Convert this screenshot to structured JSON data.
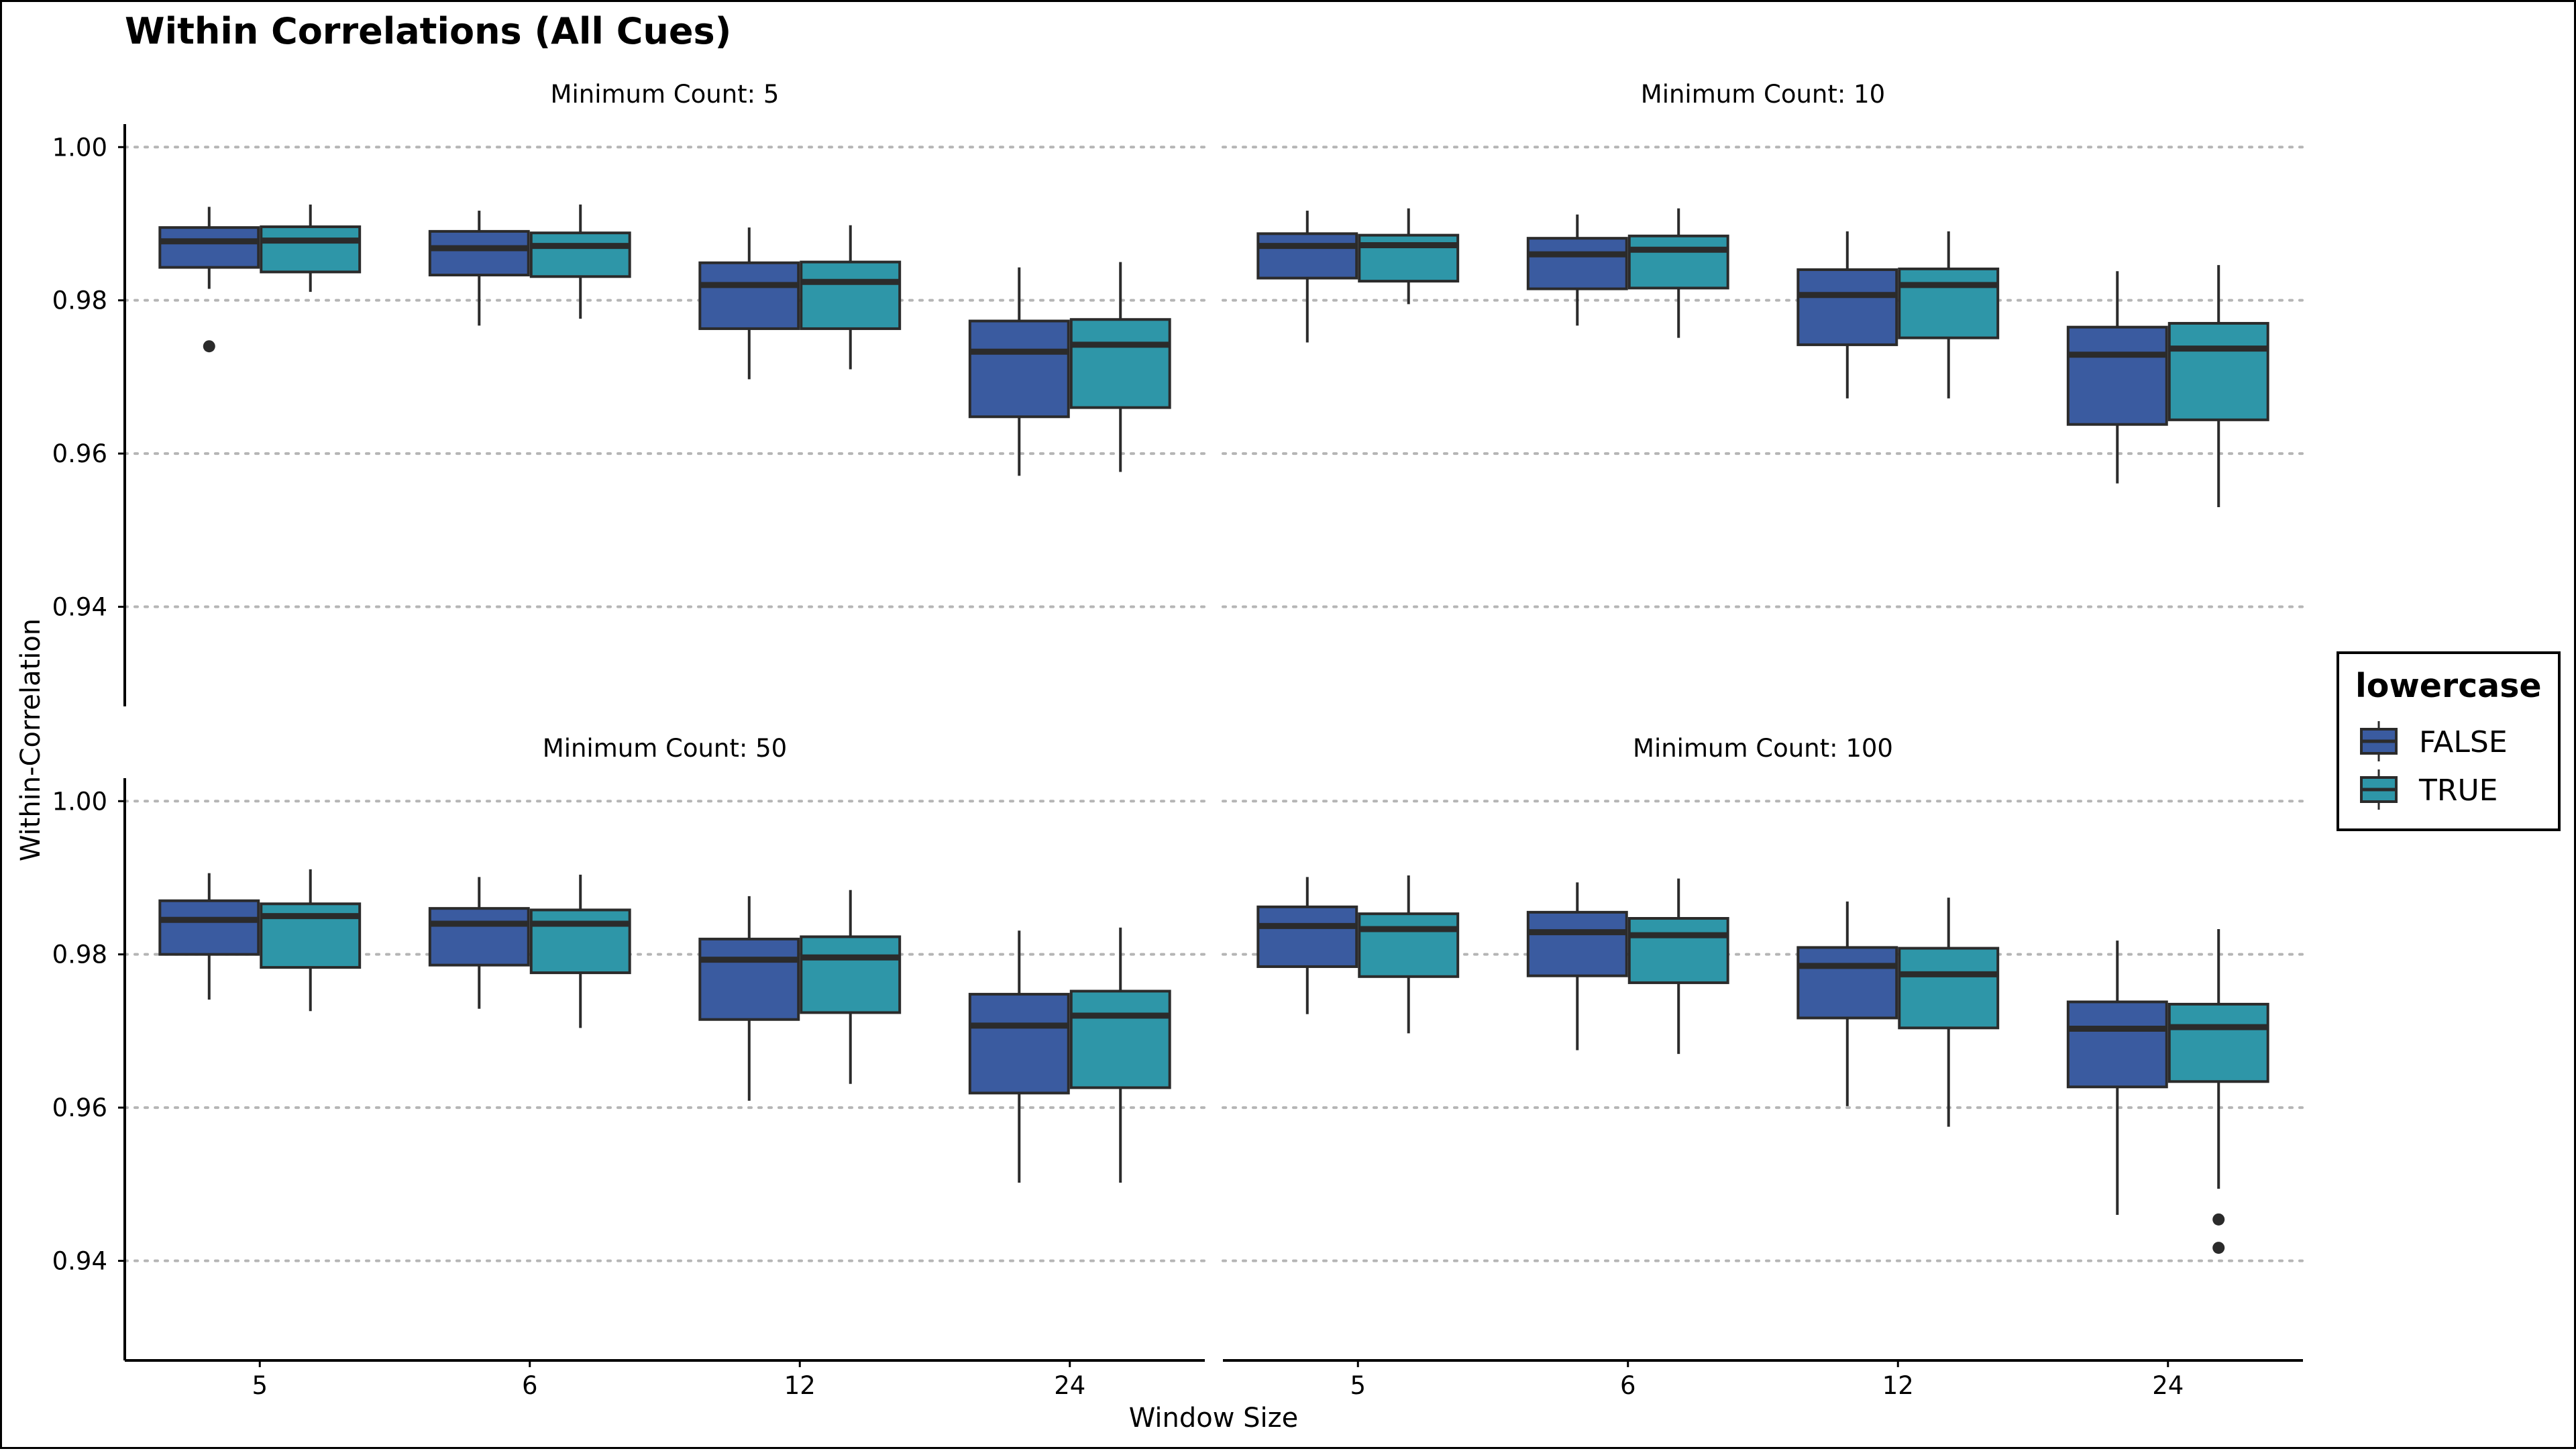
{
  "chart_data": {
    "type": "boxplot",
    "title": "Within Correlations (All Cues)",
    "xlabel": "Window Size",
    "ylabel": "Within-Correlation",
    "categories": [
      "5",
      "6",
      "12",
      "24"
    ],
    "y_ticks": [
      "0.94",
      "0.96",
      "0.98",
      "1.00"
    ],
    "ylim": [
      0.927,
      1.003
    ],
    "grid": "horizontal dotted",
    "legend": {
      "title": "lowercase",
      "placement": "right",
      "entries": [
        {
          "label": "FALSE",
          "color": "#3A5BA0"
        },
        {
          "label": "TRUE",
          "color": "#2E96A8"
        }
      ]
    },
    "panels": [
      {
        "label": "Minimum Count: 5",
        "series": [
          {
            "name": "FALSE",
            "boxes": [
              {
                "min": 0.9815,
                "q1": 0.9843,
                "median": 0.9877,
                "q3": 0.9895,
                "max": 0.9922,
                "outliers": [
                  0.974
                ]
              },
              {
                "min": 0.9767,
                "q1": 0.9833,
                "median": 0.9868,
                "q3": 0.989,
                "max": 0.9917,
                "outliers": []
              },
              {
                "min": 0.9697,
                "q1": 0.9763,
                "median": 0.982,
                "q3": 0.9849,
                "max": 0.9895,
                "outliers": []
              },
              {
                "min": 0.9571,
                "q1": 0.9648,
                "median": 0.9733,
                "q3": 0.9773,
                "max": 0.9843,
                "outliers": []
              }
            ]
          },
          {
            "name": "TRUE",
            "boxes": [
              {
                "min": 0.9811,
                "q1": 0.9837,
                "median": 0.9878,
                "q3": 0.9896,
                "max": 0.9925,
                "outliers": []
              },
              {
                "min": 0.9776,
                "q1": 0.9831,
                "median": 0.9871,
                "q3": 0.9888,
                "max": 0.9925,
                "outliers": []
              },
              {
                "min": 0.971,
                "q1": 0.9763,
                "median": 0.9824,
                "q3": 0.985,
                "max": 0.9898,
                "outliers": []
              },
              {
                "min": 0.9576,
                "q1": 0.966,
                "median": 0.9742,
                "q3": 0.9775,
                "max": 0.985,
                "outliers": []
              }
            ]
          }
        ]
      },
      {
        "label": "Minimum Count: 10",
        "series": [
          {
            "name": "FALSE",
            "boxes": [
              {
                "min": 0.9745,
                "q1": 0.9829,
                "median": 0.9871,
                "q3": 0.9887,
                "max": 0.9917,
                "outliers": []
              },
              {
                "min": 0.9767,
                "q1": 0.9815,
                "median": 0.986,
                "q3": 0.9881,
                "max": 0.9912,
                "outliers": []
              },
              {
                "min": 0.9672,
                "q1": 0.9742,
                "median": 0.9807,
                "q3": 0.984,
                "max": 0.989,
                "outliers": []
              },
              {
                "min": 0.9561,
                "q1": 0.9638,
                "median": 0.9729,
                "q3": 0.9765,
                "max": 0.9838,
                "outliers": []
              }
            ]
          },
          {
            "name": "TRUE",
            "boxes": [
              {
                "min": 0.9795,
                "q1": 0.9825,
                "median": 0.9872,
                "q3": 0.9885,
                "max": 0.992,
                "outliers": []
              },
              {
                "min": 0.9751,
                "q1": 0.9816,
                "median": 0.9866,
                "q3": 0.9884,
                "max": 0.992,
                "outliers": []
              },
              {
                "min": 0.9672,
                "q1": 0.9751,
                "median": 0.982,
                "q3": 0.9841,
                "max": 0.989,
                "outliers": []
              },
              {
                "min": 0.953,
                "q1": 0.9644,
                "median": 0.9737,
                "q3": 0.977,
                "max": 0.9846,
                "outliers": []
              }
            ]
          }
        ]
      },
      {
        "label": "Minimum Count: 50",
        "series": [
          {
            "name": "FALSE",
            "boxes": [
              {
                "min": 0.9741,
                "q1": 0.98,
                "median": 0.9845,
                "q3": 0.987,
                "max": 0.9906,
                "outliers": []
              },
              {
                "min": 0.9729,
                "q1": 0.9786,
                "median": 0.984,
                "q3": 0.986,
                "max": 0.9901,
                "outliers": []
              },
              {
                "min": 0.9609,
                "q1": 0.9715,
                "median": 0.9793,
                "q3": 0.982,
                "max": 0.9876,
                "outliers": []
              },
              {
                "min": 0.9502,
                "q1": 0.9619,
                "median": 0.9707,
                "q3": 0.9748,
                "max": 0.9831,
                "outliers": []
              }
            ]
          },
          {
            "name": "TRUE",
            "boxes": [
              {
                "min": 0.9726,
                "q1": 0.9783,
                "median": 0.985,
                "q3": 0.9866,
                "max": 0.9911,
                "outliers": []
              },
              {
                "min": 0.9704,
                "q1": 0.9776,
                "median": 0.984,
                "q3": 0.9858,
                "max": 0.9904,
                "outliers": []
              },
              {
                "min": 0.9631,
                "q1": 0.9724,
                "median": 0.9796,
                "q3": 0.9823,
                "max": 0.9884,
                "outliers": []
              },
              {
                "min": 0.9502,
                "q1": 0.9626,
                "median": 0.972,
                "q3": 0.9752,
                "max": 0.9835,
                "outliers": []
              }
            ]
          }
        ]
      },
      {
        "label": "Minimum Count: 100",
        "series": [
          {
            "name": "FALSE",
            "boxes": [
              {
                "min": 0.9722,
                "q1": 0.9784,
                "median": 0.9837,
                "q3": 0.9862,
                "max": 0.9901,
                "outliers": []
              },
              {
                "min": 0.9675,
                "q1": 0.9772,
                "median": 0.9829,
                "q3": 0.9855,
                "max": 0.9894,
                "outliers": []
              },
              {
                "min": 0.9602,
                "q1": 0.9717,
                "median": 0.9785,
                "q3": 0.9809,
                "max": 0.9869,
                "outliers": []
              },
              {
                "min": 0.946,
                "q1": 0.9627,
                "median": 0.9703,
                "q3": 0.9738,
                "max": 0.9818,
                "outliers": []
              }
            ]
          },
          {
            "name": "TRUE",
            "boxes": [
              {
                "min": 0.9697,
                "q1": 0.9771,
                "median": 0.9833,
                "q3": 0.9853,
                "max": 0.9903,
                "outliers": []
              },
              {
                "min": 0.967,
                "q1": 0.9763,
                "median": 0.9825,
                "q3": 0.9847,
                "max": 0.9899,
                "outliers": []
              },
              {
                "min": 0.9575,
                "q1": 0.9704,
                "median": 0.9774,
                "q3": 0.9808,
                "max": 0.9874,
                "outliers": []
              },
              {
                "min": 0.9494,
                "q1": 0.9634,
                "median": 0.9705,
                "q3": 0.9735,
                "max": 0.9833,
                "outliers": [
                  0.9454,
                  0.9417
                ]
              }
            ]
          }
        ]
      }
    ]
  }
}
